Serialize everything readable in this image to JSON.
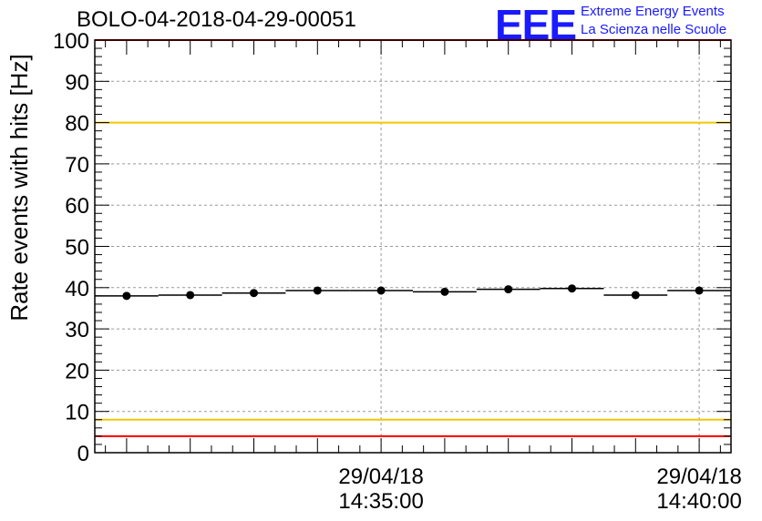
{
  "header": {
    "title": "BOLO-04-2018-04-29-00051",
    "logo": "EEE",
    "logo_line1": "Extreme Energy Events",
    "logo_line2": "La Scienza nelle Scuole"
  },
  "colors": {
    "limit_red": "#ff0000",
    "limit_yellow": "#f0c800",
    "data": "#000000",
    "logo": "#1a1aff",
    "grid": "#999999"
  },
  "chart_data": {
    "type": "scatter",
    "title": "BOLO-04-2018-04-29-00051",
    "ylabel": "Rate events with hits [Hz]",
    "xlabel": "",
    "ylim": [
      0,
      100
    ],
    "yticks": [
      0,
      10,
      20,
      30,
      40,
      50,
      60,
      70,
      80,
      90,
      100
    ],
    "xlim_minutes": [
      -4.5,
      5.5
    ],
    "xticks": [
      {
        "minute": 0,
        "date": "29/04/18",
        "time": "14:35:00"
      },
      {
        "minute": 5,
        "date": "29/04/18",
        "time": "14:40:00"
      }
    ],
    "bin_width_minutes": 1,
    "x_minutes": [
      -4,
      -3,
      -2,
      -1,
      0,
      1,
      2,
      3,
      4,
      5
    ],
    "values": [
      38.0,
      38.2,
      38.7,
      39.3,
      39.3,
      39.0,
      39.6,
      39.8,
      38.2,
      39.3
    ],
    "grid": true,
    "reference_lines": [
      {
        "y": 100,
        "color": "red"
      },
      {
        "y": 80,
        "color": "yellow"
      },
      {
        "y": 8,
        "color": "yellow"
      },
      {
        "y": 4,
        "color": "red"
      }
    ]
  }
}
